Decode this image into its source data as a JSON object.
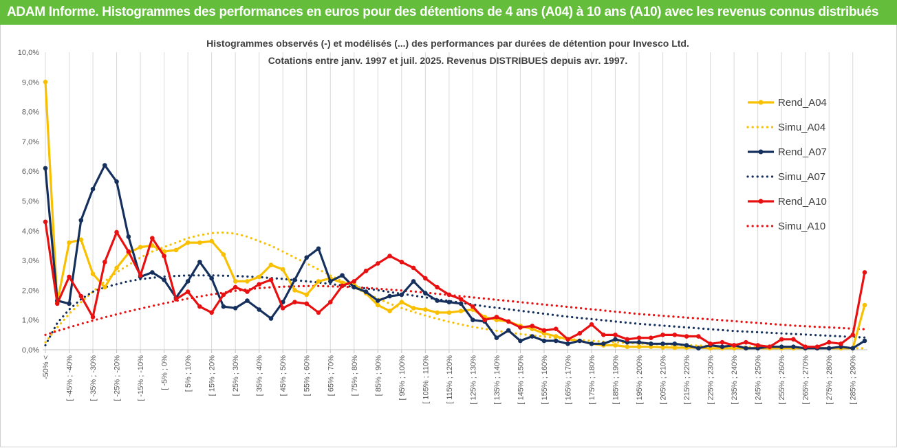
{
  "header": {
    "title": "ADAM Informe. Histogrammes des performances en euros pour des détentions de 4 ans (A04) à 10 ans (A10) avec les revenus connus distribués"
  },
  "colors": {
    "banner": "#64be3c",
    "A04": "#f8c000",
    "A07": "#16305e",
    "A10": "#e81010",
    "grid": "#d9d9d9"
  },
  "chart_data": {
    "type": "line",
    "subtitle": [
      "Histogrammes observés (-) et modélisés (...) des performances par durées de détention pour Invesco Ltd.",
      "Cotations entre janv. 1997 et juil. 2025. Revenus DISTRIBUES depuis avr. 1997."
    ],
    "ylim": [
      0,
      10
    ],
    "yticks": [
      "0,0%",
      "1,0%",
      "2,0%",
      "3,0%",
      "4,0%",
      "5,0%",
      "6,0%",
      "7,0%",
      "8,0%",
      "9,0%",
      "10,0%"
    ],
    "grid": "vertical",
    "legend_position": "right",
    "x_tick_labels": [
      "-50% <",
      "[ -45% ; -40%",
      "[ -35% ; -30%",
      "[ -25% ; -20%",
      "[ -15% ; -10%",
      "[ -5% ; 0%",
      "[ 5% ; 10%",
      "[ 15% ; 20%",
      "[ 25% ; 30%",
      "[ 35% ; 40%",
      "[ 45% ; 50%",
      "[ 55% ; 60%",
      "[ 65% ; 70%",
      "[ 75% ; 80%",
      "[ 85% ; 90%",
      "[ 95% ; 100%",
      "[ 105% ; 110%",
      "[ 115% ; 120%",
      "[ 125% ; 130%",
      "[ 135% ; 140%",
      "[ 145% ; 150%",
      "[ 155% ; 160%",
      "[ 165% ; 170%",
      "[ 175% ; 180%",
      "[ 185% ; 190%",
      "[ 195% ; 200%",
      "[ 205% ; 210%",
      "[ 215% ; 220%",
      "[ 225% ; 230%",
      "[ 235% ; 240%",
      "[ 245% ; 250%",
      "[ 255% ; 260%",
      "[ 265% ; 270%",
      "[ 275% ; 280%",
      "[ 285% ; 290%"
    ],
    "n_bins": 70,
    "series": [
      {
        "name": "Rend_A04",
        "key": "A04",
        "style": "solid",
        "markers": true,
        "values": [
          9.0,
          1.6,
          3.6,
          3.7,
          2.55,
          2.1,
          2.75,
          3.25,
          3.45,
          3.5,
          3.3,
          3.35,
          3.6,
          3.6,
          3.65,
          3.2,
          2.3,
          2.3,
          2.45,
          2.85,
          2.7,
          2.0,
          1.85,
          2.3,
          2.4,
          2.25,
          2.2,
          1.9,
          1.5,
          1.3,
          1.6,
          1.4,
          1.35,
          1.25,
          1.25,
          1.3,
          1.35,
          1.1,
          1.0,
          0.95,
          0.8,
          0.7,
          0.55,
          0.45,
          0.35,
          0.3,
          0.2,
          0.15,
          0.15,
          0.1,
          0.1,
          0.1,
          0.08,
          0.07,
          0.07,
          0.07,
          0.05,
          0.05,
          0.05,
          0.05,
          0.05,
          0.05,
          0.05,
          0.05,
          0.05,
          0.05,
          0.05,
          0.05,
          0.05,
          1.5
        ]
      },
      {
        "name": "Simu_A04",
        "key": "A04",
        "style": "dotted",
        "markers": false,
        "values": [
          0.25,
          0.75,
          1.2,
          1.6,
          1.95,
          2.3,
          2.6,
          2.85,
          3.1,
          3.3,
          3.45,
          3.6,
          3.75,
          3.85,
          3.92,
          3.94,
          3.9,
          3.8,
          3.65,
          3.5,
          3.3,
          3.1,
          2.9,
          2.7,
          2.5,
          2.3,
          2.1,
          1.9,
          1.72,
          1.55,
          1.4,
          1.27,
          1.15,
          1.04,
          0.94,
          0.85,
          0.77,
          0.7,
          0.64,
          0.58,
          0.53,
          0.48,
          0.44,
          0.4,
          0.36,
          0.33,
          0.3,
          0.27,
          0.25,
          0.23,
          0.21,
          0.19,
          0.17,
          0.16,
          0.15,
          0.14,
          0.13,
          0.12,
          0.11,
          0.1,
          0.09,
          0.08,
          0.08,
          0.07,
          0.07,
          0.06,
          0.06,
          0.05,
          0.05,
          0.05
        ]
      },
      {
        "name": "Rend_A07",
        "key": "A07",
        "style": "solid",
        "markers": true,
        "values": [
          6.1,
          1.65,
          1.55,
          4.35,
          5.4,
          6.2,
          5.65,
          3.8,
          2.45,
          2.6,
          2.35,
          1.75,
          2.3,
          2.95,
          2.4,
          1.45,
          1.4,
          1.65,
          1.35,
          1.05,
          1.6,
          2.35,
          3.1,
          3.4,
          2.3,
          2.5,
          2.1,
          1.95,
          1.65,
          1.8,
          1.85,
          2.3,
          1.9,
          1.65,
          1.6,
          1.55,
          1.0,
          0.95,
          0.4,
          0.65,
          0.3,
          0.45,
          0.3,
          0.3,
          0.2,
          0.3,
          0.2,
          0.2,
          0.35,
          0.25,
          0.25,
          0.2,
          0.2,
          0.2,
          0.15,
          0.05,
          0.15,
          0.1,
          0.15,
          0.05,
          0.05,
          0.1,
          0.1,
          0.1,
          0.05,
          0.05,
          0.05,
          0.1,
          0.05,
          0.3
        ]
      },
      {
        "name": "Simu_A07",
        "key": "A07",
        "style": "dotted",
        "markers": false,
        "values": [
          0.15,
          0.9,
          1.35,
          1.7,
          1.95,
          2.1,
          2.2,
          2.3,
          2.37,
          2.42,
          2.46,
          2.48,
          2.5,
          2.5,
          2.5,
          2.49,
          2.48,
          2.46,
          2.44,
          2.41,
          2.38,
          2.34,
          2.3,
          2.26,
          2.21,
          2.16,
          2.11,
          2.06,
          2.0,
          1.94,
          1.88,
          1.82,
          1.76,
          1.7,
          1.64,
          1.58,
          1.52,
          1.46,
          1.41,
          1.36,
          1.31,
          1.26,
          1.21,
          1.16,
          1.11,
          1.07,
          1.03,
          0.99,
          0.95,
          0.91,
          0.87,
          0.84,
          0.81,
          0.78,
          0.75,
          0.72,
          0.69,
          0.66,
          0.63,
          0.61,
          0.59,
          0.57,
          0.55,
          0.53,
          0.51,
          0.49,
          0.47,
          0.45,
          0.43,
          0.41
        ]
      },
      {
        "name": "Rend_A10",
        "key": "A10",
        "style": "solid",
        "markers": true,
        "values": [
          4.3,
          1.55,
          2.45,
          1.8,
          1.1,
          2.95,
          3.95,
          3.3,
          2.5,
          3.75,
          3.15,
          1.7,
          1.95,
          1.45,
          1.25,
          1.85,
          2.1,
          1.95,
          2.2,
          2.35,
          1.4,
          1.6,
          1.55,
          1.25,
          1.6,
          2.15,
          2.3,
          2.65,
          2.9,
          3.15,
          2.95,
          2.75,
          2.4,
          2.1,
          1.85,
          1.7,
          1.45,
          1.0,
          1.1,
          0.95,
          0.75,
          0.8,
          0.65,
          0.7,
          0.35,
          0.55,
          0.85,
          0.5,
          0.5,
          0.35,
          0.4,
          0.4,
          0.5,
          0.5,
          0.45,
          0.45,
          0.2,
          0.25,
          0.15,
          0.25,
          0.15,
          0.1,
          0.35,
          0.35,
          0.1,
          0.1,
          0.25,
          0.2,
          0.5,
          2.6
        ]
      },
      {
        "name": "Simu_A10",
        "key": "A10",
        "style": "dotted",
        "markers": false,
        "values": [
          0.5,
          0.63,
          0.75,
          0.87,
          0.98,
          1.09,
          1.19,
          1.29,
          1.38,
          1.47,
          1.56,
          1.64,
          1.72,
          1.79,
          1.86,
          1.92,
          1.98,
          2.03,
          2.07,
          2.1,
          2.12,
          2.13,
          2.14,
          2.14,
          2.13,
          2.12,
          2.1,
          2.08,
          2.05,
          2.02,
          1.99,
          1.96,
          1.92,
          1.88,
          1.84,
          1.8,
          1.76,
          1.72,
          1.68,
          1.64,
          1.6,
          1.56,
          1.52,
          1.48,
          1.44,
          1.4,
          1.36,
          1.32,
          1.28,
          1.24,
          1.2,
          1.17,
          1.14,
          1.11,
          1.08,
          1.05,
          1.02,
          0.99,
          0.96,
          0.93,
          0.9,
          0.87,
          0.84,
          0.81,
          0.79,
          0.77,
          0.75,
          0.73,
          0.71,
          0.69
        ]
      }
    ]
  }
}
